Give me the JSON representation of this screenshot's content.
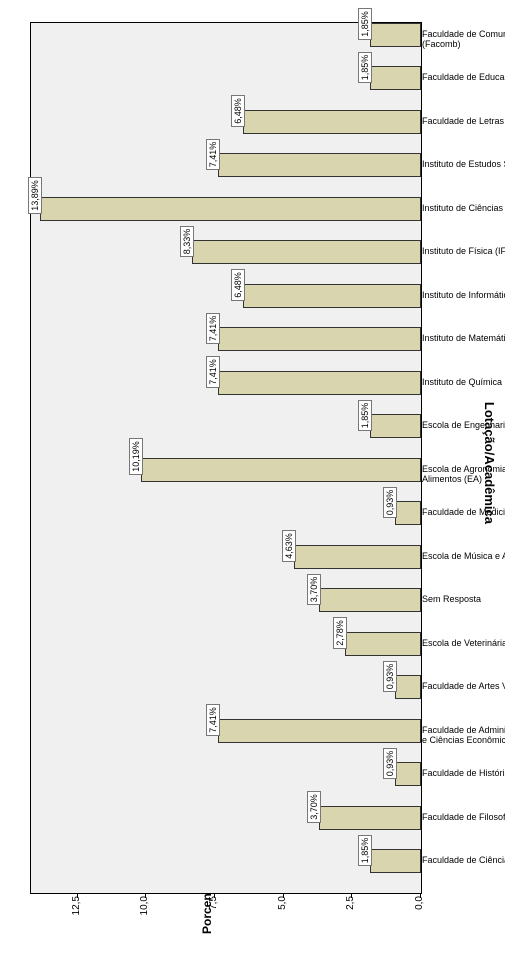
{
  "chart": {
    "type": "bar",
    "x_axis_label": "Lotação/Acadêmica",
    "y_axis_label": "Porcentagem",
    "ylim": [
      0,
      13.5
    ],
    "yticks": [
      "0,0",
      "2,5",
      "5,0",
      "7,5",
      "10,0",
      "12,5"
    ],
    "ytick_values": [
      0,
      2.5,
      5.0,
      7.5,
      10.0,
      12.5
    ],
    "bar_color": "#d9d6af",
    "bar_border_color": "#333333",
    "plot_background": "#f0f0f0",
    "border_color": "#000000",
    "label_fontsize": 10,
    "axis_label_fontsize": 12,
    "items": [
      {
        "label": "Faculdade de Ciências Sociais (FCS)",
        "pct_label": "1,85%",
        "value": 1.85
      },
      {
        "label": "Faculdade de Filosofia (Fafil)",
        "pct_label": "3,70%",
        "value": 3.7
      },
      {
        "label": "Faculdade de História (FH)",
        "pct_label": "0,93%",
        "value": 0.93
      },
      {
        "label": "Faculdade de Administração, Ciências Contábeis e Ciências Econômicas (FACE",
        "pct_label": "7,41%",
        "value": 7.41
      },
      {
        "label": "Faculdade de Artes Visuais (FAV)",
        "pct_label": "0,93%",
        "value": 0.93
      },
      {
        "label": "Escola de Veterinária (EV)",
        "pct_label": "2,78%",
        "value": 2.78
      },
      {
        "label": "Sem Resposta",
        "pct_label": "3,70%",
        "value": 3.7
      },
      {
        "label": "Escola de Música e Artes Cênicas (Emac",
        "pct_label": "4,63%",
        "value": 4.63
      },
      {
        "label": "Faculdade de Medicina (FM)",
        "pct_label": "0,93%",
        "value": 0.93
      },
      {
        "label": "Escola de Agronomia e de Engenharia de Alimentos (EA)",
        "pct_label": "10,19%",
        "value": 10.19
      },
      {
        "label": "Escola de Engenharia Civil (EEC)",
        "pct_label": "1,85%",
        "value": 1.85
      },
      {
        "label": "Instituto de Química (IQ)",
        "pct_label": "7,41%",
        "value": 7.41
      },
      {
        "label": "Instituto de Matemática e Estatística (IME",
        "pct_label": "7,41%",
        "value": 7.41
      },
      {
        "label": "Instituto de Informática (INF)",
        "pct_label": "6,48%",
        "value": 6.48
      },
      {
        "label": "Instituto de Física (IF)",
        "pct_label": "8,33%",
        "value": 8.33
      },
      {
        "label": "Instituto de Ciências Biológicas (ICB)",
        "pct_label": "13,89%",
        "value": 13.89
      },
      {
        "label": "Instituto de Estudos Socioambientais (Iesa",
        "pct_label": "7,41%",
        "value": 7.41
      },
      {
        "label": "Faculdade de Letras (FL)",
        "pct_label": "6,48%",
        "value": 6.48
      },
      {
        "label": "Faculdade de Educação Física (FEF)",
        "pct_label": "1,85%",
        "value": 1.85
      },
      {
        "label": "Faculdade de Comunicação e Biblioteconomia (Facomb)",
        "pct_label": "1,85%",
        "value": 1.85
      }
    ]
  }
}
